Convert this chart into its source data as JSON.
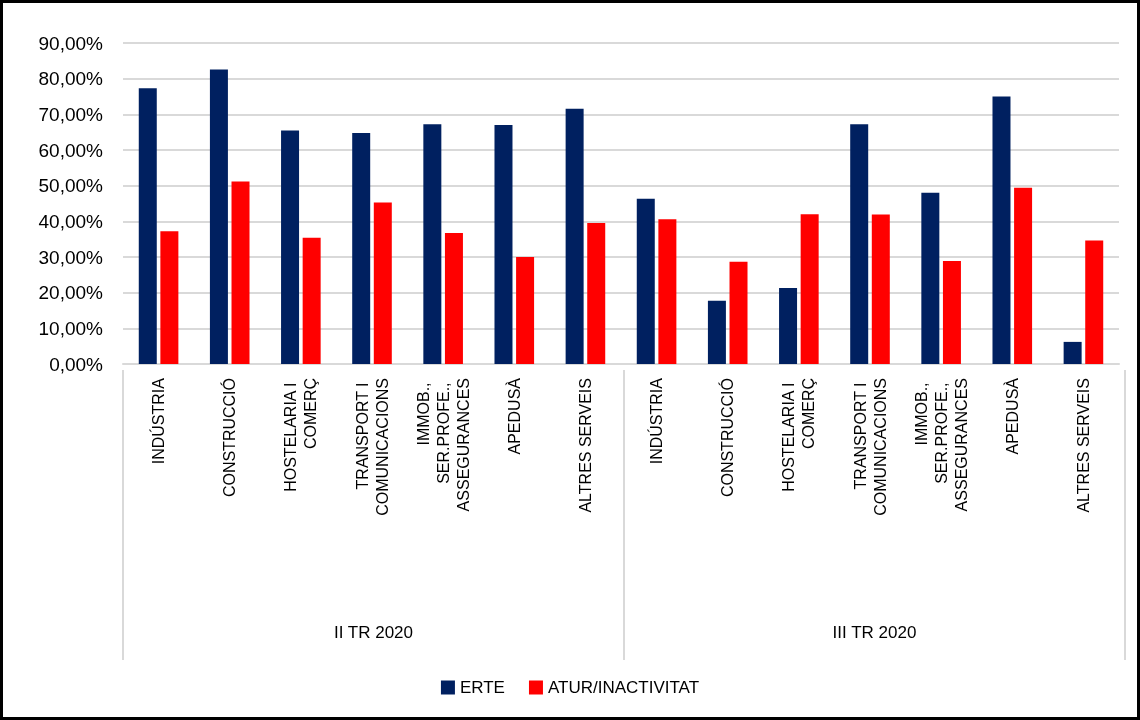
{
  "chart_data": {
    "type": "bar",
    "categories": [
      "INDÚSTRIA",
      "CONSTRUCCIÓ",
      "HOSTELARIA I COMERÇ",
      "TRANSPORT I COMUNICACIONS",
      "IMMOB., SER.PROFE., ASSEGURANCES",
      "APEDUSÀ",
      "ALTRES SERVEIS",
      "INDÚSTRIA",
      "CONSTRUCCIÓ",
      "HOSTELARIA I COMERÇ",
      "TRANSPORT I COMUNICACIONS",
      "IMMOB., SER.PROFE., ASSEGURANCES",
      "APEDUSÀ",
      "ALTRES SERVEIS"
    ],
    "series": [
      {
        "name": "ERTE",
        "color": "#002060",
        "values": [
          77.3,
          82.6,
          65.5,
          64.8,
          67.2,
          67.0,
          71.6,
          46.3,
          17.7,
          21.3,
          67.2,
          48.0,
          75.0,
          6.2
        ]
      },
      {
        "name": "ATUR/INACTIVITAT",
        "color": "#ff0000",
        "values": [
          37.2,
          51.2,
          35.4,
          45.3,
          36.7,
          30.0,
          39.5,
          40.6,
          28.7,
          42.0,
          41.9,
          28.9,
          49.4,
          34.6
        ]
      }
    ],
    "annotations": [
      "II TR 2020",
      "III TR 2020"
    ],
    "ylim": [
      0,
      90
    ],
    "yticks": [
      {
        "value": 0,
        "label": "0,00%"
      },
      {
        "value": 10,
        "label": "10,00%"
      },
      {
        "value": 20,
        "label": "20,00%"
      },
      {
        "value": 30,
        "label": "30,00%"
      },
      {
        "value": 40,
        "label": "40,00%"
      },
      {
        "value": 50,
        "label": "50,00%"
      },
      {
        "value": 60,
        "label": "60,00%"
      },
      {
        "value": 70,
        "label": "70,00%"
      },
      {
        "value": 80,
        "label": "80,00%"
      },
      {
        "value": 90,
        "label": "90,00%"
      }
    ],
    "grid": "y",
    "legend": "bottom"
  }
}
